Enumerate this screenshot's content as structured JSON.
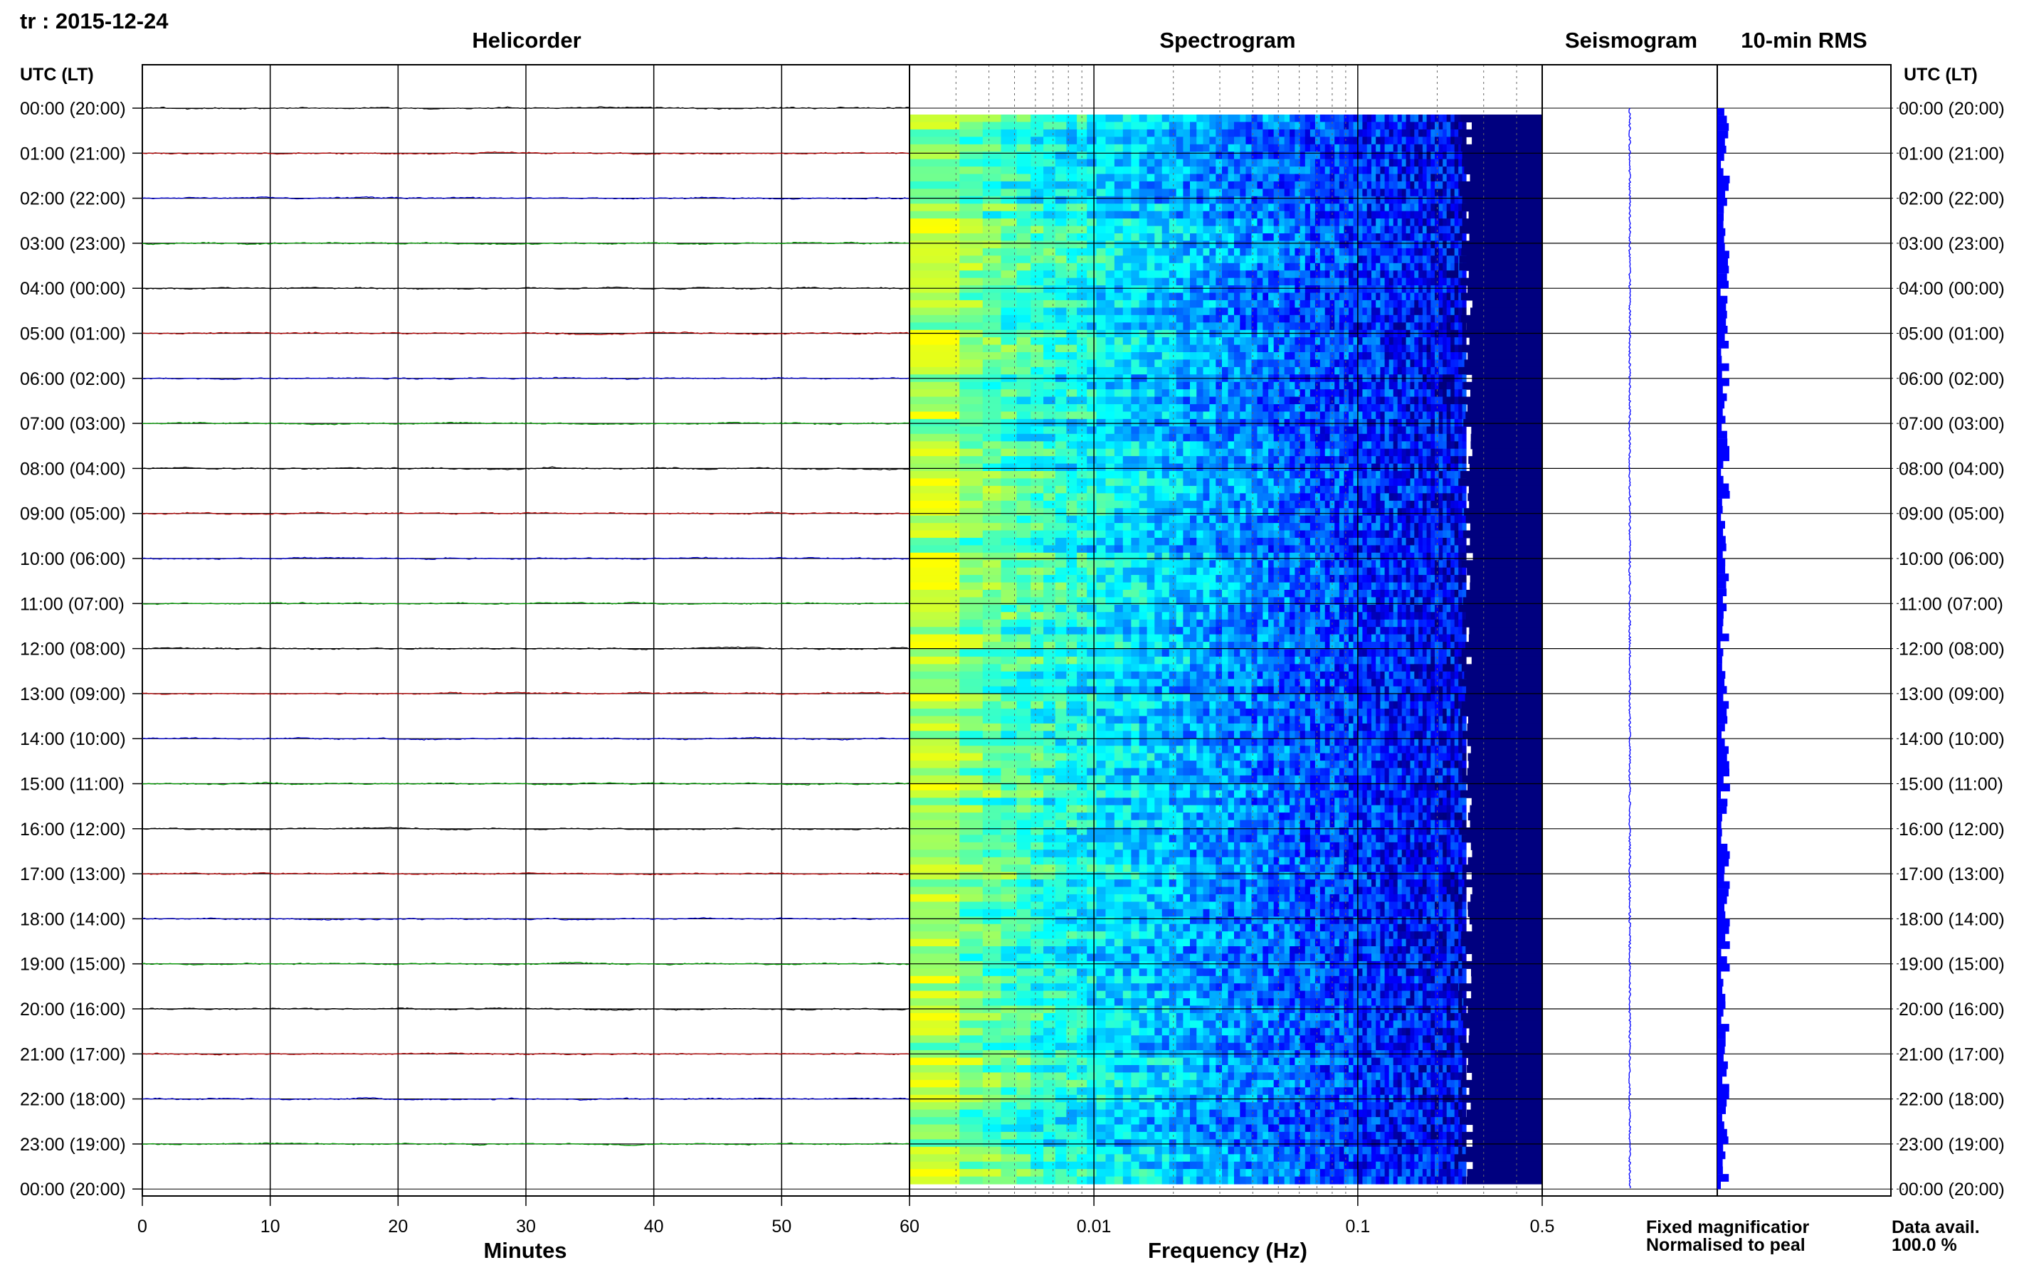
{
  "header": {
    "station_date": "tr : 2015-12-24",
    "utc_lt_left": "UTC (LT)",
    "utc_lt_right": "UTC (LT)"
  },
  "panels": {
    "helicorder": "Helicorder",
    "spectrogram": "Spectrogram",
    "seismogram": "Seismogram",
    "rms": "10-min RMS"
  },
  "axes": {
    "minutes_label": "Minutes",
    "frequency_label": "Frequency (Hz)",
    "minute_ticks": [
      "0",
      "10",
      "20",
      "30",
      "40",
      "50",
      "60"
    ],
    "frequency_ticks": [
      "0.01",
      "0.1",
      "0.5"
    ]
  },
  "legend": {
    "fixed": "Fixed magnificatior",
    "normalised": "Normalised to peal",
    "data_avail_label": "Data avail.",
    "data_avail_value": "100.0 %"
  },
  "colors": {
    "trace_cycle": [
      "#000000",
      "#b30000",
      "#0000cc",
      "#009900"
    ],
    "fixed_legend": "#0000ff",
    "normalised_legend": "#ff0000",
    "rms_bars": "#0000ff",
    "seismogram": "#0000ff"
  },
  "chart_data": [
    {
      "type": "line",
      "title": "Helicorder",
      "xlabel": "Minutes",
      "xlim": [
        0,
        60
      ],
      "ytick_labels": [
        "00:00 (20:00)",
        "01:00 (21:00)",
        "02:00 (22:00)",
        "03:00 (23:00)",
        "04:00 (00:00)",
        "05:00 (01:00)",
        "06:00 (02:00)",
        "07:00 (03:00)",
        "08:00 (04:00)",
        "09:00 (05:00)",
        "10:00 (06:00)",
        "11:00 (07:00)",
        "12:00 (08:00)",
        "13:00 (09:00)",
        "14:00 (10:00)",
        "15:00 (11:00)",
        "16:00 (12:00)",
        "17:00 (13:00)",
        "18:00 (14:00)",
        "19:00 (15:00)",
        "20:00 (16:00)",
        "21:00 (17:00)",
        "22:00 (18:00)",
        "23:00 (19:00)",
        "00:00 (20:00)"
      ],
      "series_count": 24,
      "grid": true
    },
    {
      "type": "heatmap",
      "title": "Spectrogram",
      "xlabel": "Frequency (Hz)",
      "xscale": "log",
      "xlim": [
        0.002,
        0.5
      ],
      "rows": 24,
      "colormap": [
        "#00007f",
        "#0000ff",
        "#0080ff",
        "#00ffff",
        "#80ff80",
        "#ffff00"
      ]
    },
    {
      "type": "bar",
      "title": "10-min RMS",
      "orientation": "horizontal",
      "bins": 144,
      "relative_values_first_hour": [
        0.55,
        0.75,
        0.9,
        0.85,
        0.6,
        0.7
      ]
    }
  ]
}
